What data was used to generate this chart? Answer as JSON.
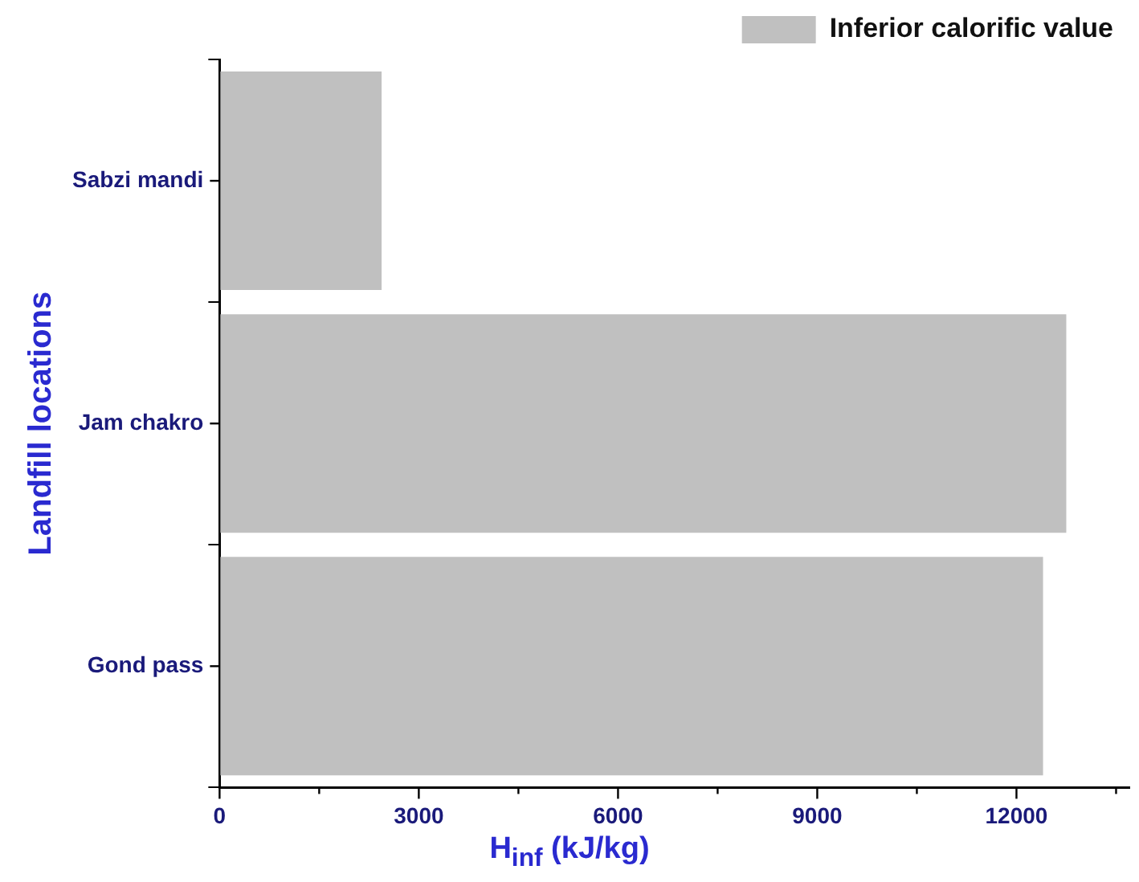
{
  "chart_data": {
    "type": "bar",
    "orientation": "horizontal",
    "categories": [
      "Sabzi mandi",
      "Jam chakro",
      "Gond pass"
    ],
    "series": [
      {
        "name": "Inferior calorific value",
        "color": "#c0c0c0",
        "values": [
          2440,
          12750,
          12400
        ]
      }
    ],
    "xlabel": "H$_{inf}$ (kJ/kg)",
    "ylabel": "Landfill locations",
    "xlim": [
      0,
      13700
    ],
    "xticks": [
      0,
      {
        "value": 1500,
        "label": null
      },
      3000,
      {
        "value": 4500,
        "label": null
      },
      6000,
      {
        "value": 7500,
        "label": null
      },
      9000,
      {
        "value": 10500,
        "label": null
      },
      12000,
      {
        "value": 13500,
        "label": null
      }
    ],
    "grid": false,
    "legend": "top right"
  }
}
